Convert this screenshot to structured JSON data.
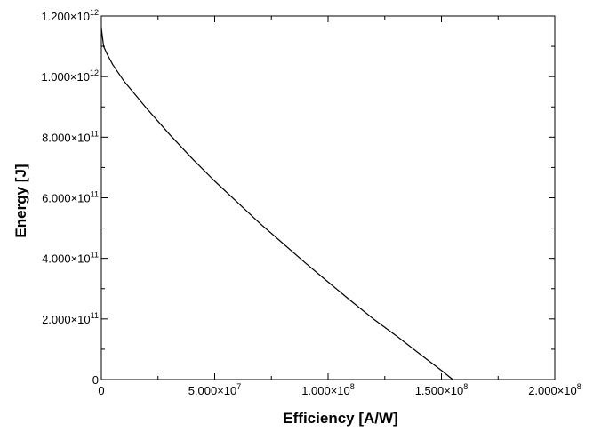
{
  "chart_data": {
    "type": "line",
    "xlabel": "Efficiency [A/W]",
    "ylabel": "Energy [J]",
    "xlim": [
      0,
      200000000
    ],
    "ylim": [
      0,
      1200000000000
    ],
    "xticks": [
      {
        "value": 0,
        "mantissa": "0",
        "exponent": ""
      },
      {
        "value": 50000000,
        "mantissa": "5.000×10",
        "exponent": "7"
      },
      {
        "value": 100000000,
        "mantissa": "1.000×10",
        "exponent": "8"
      },
      {
        "value": 150000000,
        "mantissa": "1.500×10",
        "exponent": "8"
      },
      {
        "value": 200000000,
        "mantissa": "2.000×10",
        "exponent": "8"
      }
    ],
    "yticks": [
      {
        "value": 0,
        "mantissa": "0",
        "exponent": ""
      },
      {
        "value": 200000000000,
        "mantissa": "2.000×10",
        "exponent": "11"
      },
      {
        "value": 400000000000,
        "mantissa": "4.000×10",
        "exponent": "11"
      },
      {
        "value": 600000000000,
        "mantissa": "6.000×10",
        "exponent": "11"
      },
      {
        "value": 800000000000,
        "mantissa": "8.000×10",
        "exponent": "11"
      },
      {
        "value": 1000000000000,
        "mantissa": "1.000×10",
        "exponent": "12"
      },
      {
        "value": 1200000000000,
        "mantissa": "1.200×10",
        "exponent": "12"
      }
    ],
    "grid": false,
    "series": [
      {
        "color": "#000000",
        "x": [
          0,
          1000000,
          2500000,
          5000000,
          10000000,
          20000000,
          30000000,
          40000000,
          50000000,
          60000000,
          70000000,
          80000000,
          90000000,
          100000000,
          110000000,
          120000000,
          130000000,
          140000000,
          150000000,
          155000000
        ],
        "y": [
          1160000000000,
          1100000000000,
          1075000000000,
          1040000000000,
          985000000000,
          895000000000,
          810000000000,
          730000000000,
          655000000000,
          585000000000,
          515000000000,
          450000000000,
          385000000000,
          322000000000,
          260000000000,
          200000000000,
          145000000000,
          87000000000,
          30000000000,
          0
        ]
      }
    ]
  }
}
